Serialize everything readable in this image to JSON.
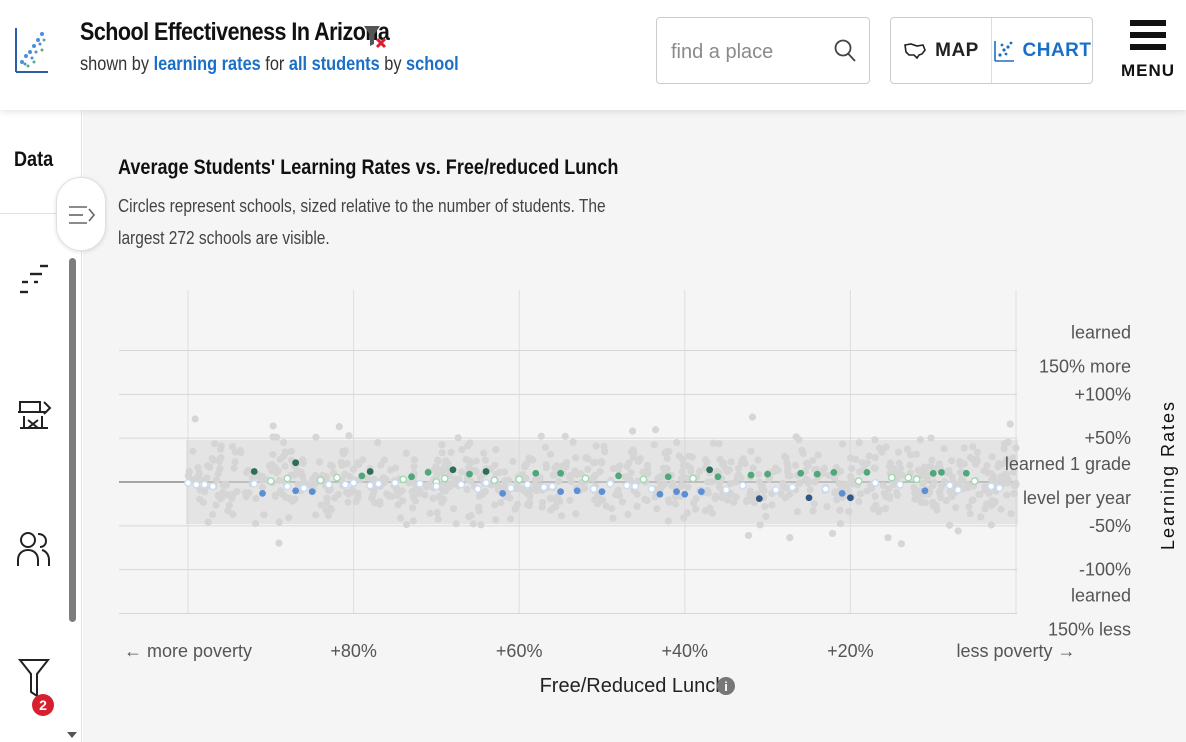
{
  "header": {
    "title": "School Effectiveness In Arizona",
    "subtitle": {
      "prefix": "shown by",
      "metric": "learning rates",
      "mid1": "for",
      "group": "all students",
      "mid2": "by",
      "level": "school"
    },
    "search_placeholder": "find a place",
    "map_label": "MAP",
    "chart_label": "CHART",
    "menu_label": "MENU",
    "active_view": "chart"
  },
  "sidebar": {
    "title": "Data",
    "items": [
      {
        "icon": "metric-selector-icon"
      },
      {
        "icon": "school-level-icon"
      },
      {
        "icon": "demographics-icon"
      },
      {
        "icon": "filter-icon",
        "badge": "2"
      }
    ]
  },
  "chart": {
    "title": "Average Students' Learning Rates vs. Free/reduced Lunch",
    "description": "Circles represent schools, sized relative to the number of students. The largest 272 schools are visible.",
    "xlabel": "Free/Reduced Lunch",
    "ylabel": "Learning Rates",
    "x_ticks": [
      "← more poverty",
      "+80%",
      "+60%",
      "+40%",
      "+20%",
      "less poverty →"
    ],
    "y_tick_labels": {
      "top": [
        "learned",
        "150% more"
      ],
      "p100": "+100%",
      "p50": "+50%",
      "mid": [
        "learned 1 grade",
        "level per year"
      ],
      "m50": "-50%",
      "m100": "-100%",
      "bottom": [
        "learned",
        "150% less"
      ]
    }
  },
  "chart_data": {
    "type": "scatter",
    "title": "Average Students' Learning Rates vs. Free/reduced Lunch",
    "xlabel": "Free/Reduced Lunch",
    "ylabel": "Learning Rates",
    "x_ticks": [
      {
        "value": 100,
        "label": "← more poverty"
      },
      {
        "value": 80,
        "label": "+80%"
      },
      {
        "value": 60,
        "label": "+60%"
      },
      {
        "value": 40,
        "label": "+40%"
      },
      {
        "value": 20,
        "label": "+20%"
      },
      {
        "value": 0,
        "label": "less poverty →"
      }
    ],
    "xlim": [
      100,
      0
    ],
    "ylim": [
      -150,
      150
    ],
    "y_ticks": [
      150,
      100,
      50,
      0,
      -50,
      -100,
      -150
    ],
    "colors": {
      "background_points": "#d6d6d6",
      "above_average_light": "#9ed8b0",
      "above_average": "#4fa87a",
      "above_average_dark": "#2c6e5a",
      "below_average_light": "#c9dcf2",
      "below_average": "#5a8fd6",
      "below_average_dark": "#2e5984"
    },
    "series": [
      {
        "name": "",
        "points": [
          [
            100,
            -1
          ],
          [
            99,
            -3
          ],
          [
            98,
            -3
          ],
          [
            97,
            -5
          ],
          [
            92,
            12
          ],
          [
            92,
            -2
          ],
          [
            91,
            -13
          ],
          [
            90,
            1
          ],
          [
            88,
            4
          ],
          [
            88,
            -5
          ],
          [
            87,
            22
          ],
          [
            87,
            -10
          ],
          [
            86,
            -7
          ],
          [
            85,
            -11
          ],
          [
            84,
            2
          ],
          [
            83,
            -3
          ],
          [
            82,
            5
          ],
          [
            81,
            -3
          ],
          [
            80,
            -1
          ],
          [
            79,
            7
          ],
          [
            78,
            -4
          ],
          [
            78,
            12
          ],
          [
            77,
            -2
          ],
          [
            75,
            -1
          ],
          [
            74,
            3
          ],
          [
            73,
            6
          ],
          [
            72,
            -2
          ],
          [
            71,
            11
          ],
          [
            70,
            0
          ],
          [
            70,
            -5
          ],
          [
            69,
            4
          ],
          [
            68,
            14
          ],
          [
            67,
            -3
          ],
          [
            66,
            9
          ],
          [
            65,
            -8
          ],
          [
            64,
            -1
          ],
          [
            64,
            12
          ],
          [
            63,
            2
          ],
          [
            62,
            -13
          ],
          [
            61,
            -7
          ],
          [
            60,
            3
          ],
          [
            59,
            -3
          ],
          [
            58,
            10
          ],
          [
            57,
            -6
          ],
          [
            56,
            -5
          ],
          [
            55,
            10
          ],
          [
            55,
            -11
          ],
          [
            53,
            -10
          ],
          [
            52,
            4
          ],
          [
            51,
            -8
          ],
          [
            50,
            -11
          ],
          [
            49,
            -2
          ],
          [
            48,
            7
          ],
          [
            47,
            -4
          ],
          [
            46,
            -5
          ],
          [
            45,
            3
          ],
          [
            44,
            -8
          ],
          [
            43,
            -14
          ],
          [
            42,
            6
          ],
          [
            41,
            -11
          ],
          [
            40,
            -14
          ],
          [
            39,
            4
          ],
          [
            38,
            -11
          ],
          [
            37,
            14
          ],
          [
            36,
            6
          ],
          [
            35,
            -9
          ],
          [
            33,
            -4
          ],
          [
            32,
            8
          ],
          [
            31,
            -19
          ],
          [
            30,
            9
          ],
          [
            29,
            -9
          ],
          [
            27,
            -6
          ],
          [
            26,
            10
          ],
          [
            25,
            -18
          ],
          [
            24,
            9
          ],
          [
            23,
            -8
          ],
          [
            22,
            11
          ],
          [
            21,
            -13
          ],
          [
            20,
            -18
          ],
          [
            19,
            1
          ],
          [
            18,
            11
          ],
          [
            17,
            -1
          ],
          [
            15,
            5
          ],
          [
            14,
            -3
          ],
          [
            13,
            5
          ],
          [
            12,
            3
          ],
          [
            11,
            -10
          ],
          [
            10,
            10
          ],
          [
            9,
            11
          ],
          [
            8,
            -4
          ],
          [
            7,
            -9
          ],
          [
            6,
            10
          ],
          [
            5,
            1
          ],
          [
            3,
            -5
          ],
          [
            2,
            -7
          ]
        ]
      }
    ]
  }
}
